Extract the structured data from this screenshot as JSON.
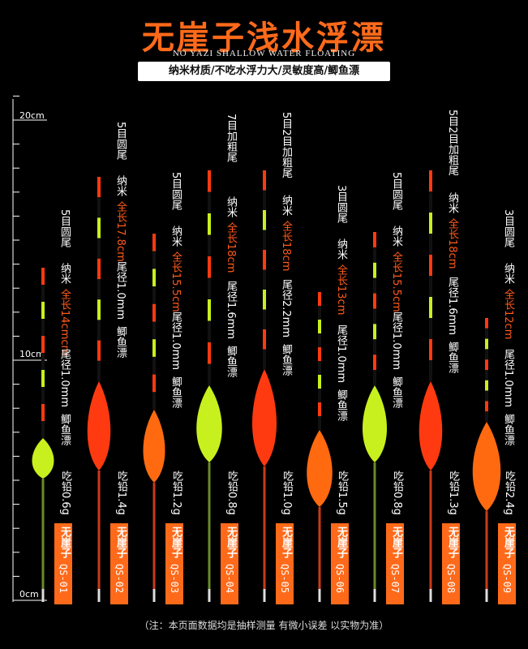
{
  "header": {
    "title": "无崖子浅水浮漂",
    "subtitle": "NO YAZI SHALLOW WATER FLOATING",
    "features": "纳米材质/不吃水浮力大/灵敏度高/鲫鱼漂"
  },
  "ruler": {
    "label_20": "20cm",
    "label_10": "10cm",
    "label_0": "0cm"
  },
  "floats": [
    {
      "eyes": "5目圆尾",
      "material": "纳米",
      "length": "全长14cmcm",
      "tail": "尾径1.0mm",
      "kind": "鲫鱼漂",
      "lead": "吃铅0.6g",
      "brand": "无崖子",
      "model": "QS-01",
      "body_color": "#c8f01e",
      "logo_color": "#2a2a00"
    },
    {
      "eyes": "5目圆尾",
      "material": "纳米",
      "length": "全长17.8cm",
      "tail": "尾径1.0mm",
      "kind": "鲫鱼漂",
      "lead": "吃铅1.4g",
      "brand": "无崖子",
      "model": "QS-02",
      "body_color": "#ff3a10",
      "logo_color": "#3a0a00"
    },
    {
      "eyes": "5目圆尾",
      "material": "纳米",
      "length": "全长15.5cm",
      "tail": "尾径1.0mm",
      "kind": "鲫鱼漂",
      "lead": "吃铅1.2g",
      "brand": "无崖子",
      "model": "QS-03",
      "body_color": "#ff6a10",
      "logo_color": "#3a0a00"
    },
    {
      "eyes": "7目加粗尾",
      "material": "纳米",
      "length": "全长18cm",
      "tail": "尾径1.6mm",
      "kind": "鲫鱼漂",
      "lead": "吃铅0.8g",
      "brand": "无崖子",
      "model": "QS-04",
      "body_color": "#c8f01e",
      "logo_color": "#2a2a00"
    },
    {
      "eyes": "5目2目加粗尾",
      "material": "纳米",
      "length": "全长18cm",
      "tail": "尾径2.2mm",
      "kind": "鲫鱼漂",
      "lead": "吃铅1.0g",
      "brand": "无崖子",
      "model": "QS-05",
      "body_color": "#ff3a10",
      "logo_color": "#3a0a00"
    },
    {
      "eyes": "3目圆尾",
      "material": "纳米",
      "length": "全长13cm",
      "tail": "尾径1.0mm",
      "kind": "鲫鱼漂",
      "lead": "吃铅1.5g",
      "brand": "无崖子",
      "model": "QS-06",
      "body_color": "#ff6a10",
      "logo_color": "#3a0a00"
    },
    {
      "eyes": "5目圆尾",
      "material": "纳米",
      "length": "全长15.5cm",
      "tail": "尾径1.0mm",
      "kind": "鲫鱼漂",
      "lead": "吃铅0.8g",
      "brand": "无崖子",
      "model": "QS-07",
      "body_color": "#c8f01e",
      "logo_color": "#2a2a00"
    },
    {
      "eyes": "5目2目加粗尾",
      "material": "纳米",
      "length": "全长18cm",
      "tail": "尾径1.6mm",
      "kind": "鲫鱼漂",
      "lead": "吃铅1.3g",
      "brand": "无崖子",
      "model": "QS-08",
      "body_color": "#ff3a10",
      "logo_color": "#3a0a00"
    },
    {
      "eyes": "3目圆尾",
      "material": "纳米",
      "length": "全长12cm",
      "tail": "尾径1.0mm",
      "kind": "鲫鱼漂",
      "lead": "吃铅2.4g",
      "brand": "无崖子",
      "model": "QS-09",
      "body_color": "#ff6a10",
      "logo_color": "#3a0a00"
    }
  ],
  "footnote": "（注：本页面数据均是抽样测量  有微小误差  以实物为准）"
}
